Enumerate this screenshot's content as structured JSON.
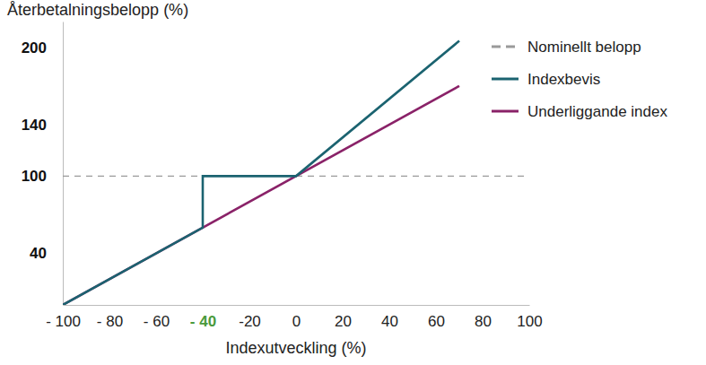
{
  "chart_data": {
    "type": "line",
    "x_label": "Indexutveckling (%)",
    "y_label": "Återbetalningsbelopp (%)",
    "xlim": [
      -100,
      100
    ],
    "ylim": [
      0,
      220
    ],
    "xticks": [
      {
        "value": -100,
        "label": "- 100"
      },
      {
        "value": -80,
        "label": "- 80"
      },
      {
        "value": -60,
        "label": "- 60"
      },
      {
        "value": -40,
        "label": "- 40",
        "color": "#4a9a3c"
      },
      {
        "value": -20,
        "label": "-20"
      },
      0,
      20,
      40,
      60,
      80,
      100
    ],
    "yticks": [
      40,
      100,
      140,
      200
    ],
    "grid": false,
    "legend": "right",
    "series": [
      {
        "name": "Nominellt belopp",
        "color": "#9a9a9a",
        "line_style": "dashed",
        "x": [
          -100,
          100
        ],
        "values": [
          100,
          100
        ]
      },
      {
        "name": "Indexbevis",
        "color": "#1b6370",
        "line_style": "solid",
        "x": [
          -100,
          -40,
          -40,
          0,
          70
        ],
        "values": [
          0,
          60,
          100,
          100,
          205
        ]
      },
      {
        "name": "Underliggande index",
        "color": "#8a2268",
        "line_style": "solid",
        "x": [
          -100,
          70
        ],
        "values": [
          0,
          170
        ]
      }
    ]
  }
}
